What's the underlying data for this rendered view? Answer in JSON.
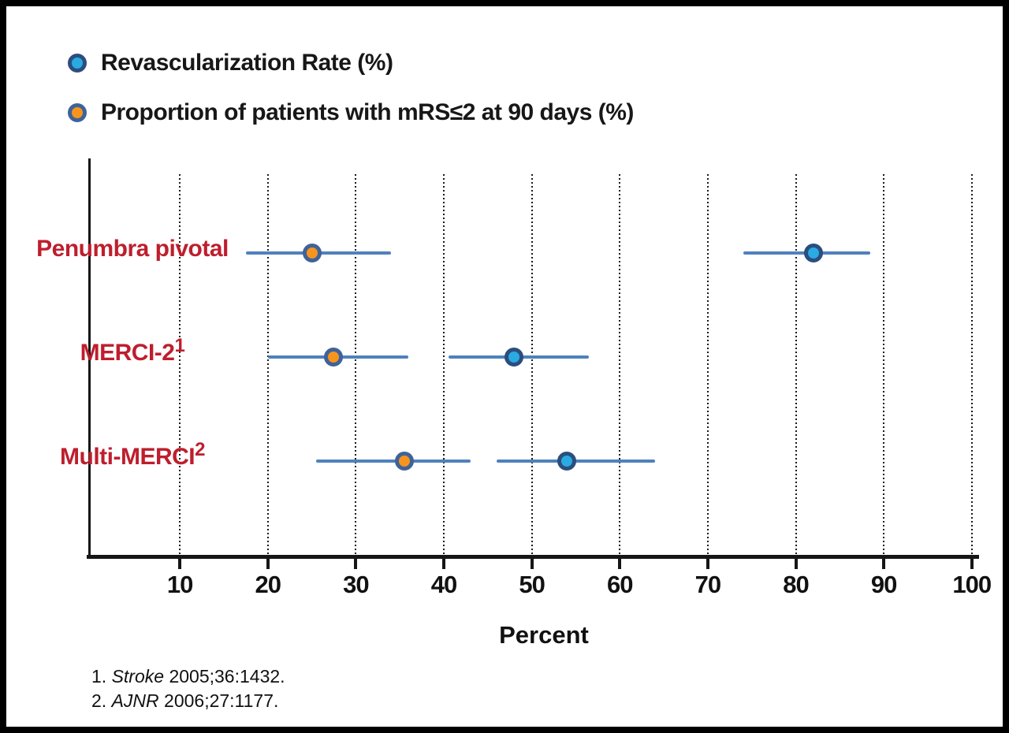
{
  "chart_data": {
    "type": "scatter",
    "subtype": "horizontal dot plot with confidence-interval error bars",
    "title": "",
    "xlabel": "Percent",
    "xlim": [
      0,
      100
    ],
    "xticks": [
      10,
      20,
      30,
      40,
      50,
      60,
      70,
      80,
      90,
      100
    ],
    "grid": "vertical dotted gridlines at every x tick",
    "legend_position": "top-left",
    "category_label_color": "#BE1E2D",
    "categories": [
      {
        "label": "Penumbra pivotal",
        "sup": ""
      },
      {
        "label": "MERCI-2",
        "sup": "1"
      },
      {
        "label": "Multi-MERCI",
        "sup": "2"
      }
    ],
    "series": [
      {
        "name": "Revascularization Rate (%)",
        "marker_fill": "#29ABE2",
        "marker_ring": "#2B4E7E",
        "bar_color": "#4F81BD",
        "points": [
          {
            "category": "Penumbra pivotal",
            "value": 82,
            "ci_low": 74,
            "ci_high": 88.5
          },
          {
            "category": "MERCI-2",
            "value": 48,
            "ci_low": 40.5,
            "ci_high": 56.5
          },
          {
            "category": "Multi-MERCI",
            "value": 54,
            "ci_low": 46,
            "ci_high": 64
          }
        ]
      },
      {
        "name": "Proportion of patients with mRS≤2 at 90 days (%)",
        "marker_fill": "#F7941E",
        "marker_ring": "#3F6398",
        "bar_color": "#4F81BD",
        "points": [
          {
            "category": "Penumbra pivotal",
            "value": 25,
            "ci_low": 17.5,
            "ci_high": 34
          },
          {
            "category": "MERCI-2",
            "value": 27.5,
            "ci_low": 20,
            "ci_high": 36
          },
          {
            "category": "Multi-MERCI",
            "value": 35.5,
            "ci_low": 25.5,
            "ci_high": 43
          }
        ]
      }
    ]
  },
  "footnotes": [
    {
      "num": "1.",
      "source": "Stroke",
      "citation": "2005;36:1432."
    },
    {
      "num": "2.",
      "source": "AJNR",
      "citation": "2006;27:1177."
    }
  ]
}
